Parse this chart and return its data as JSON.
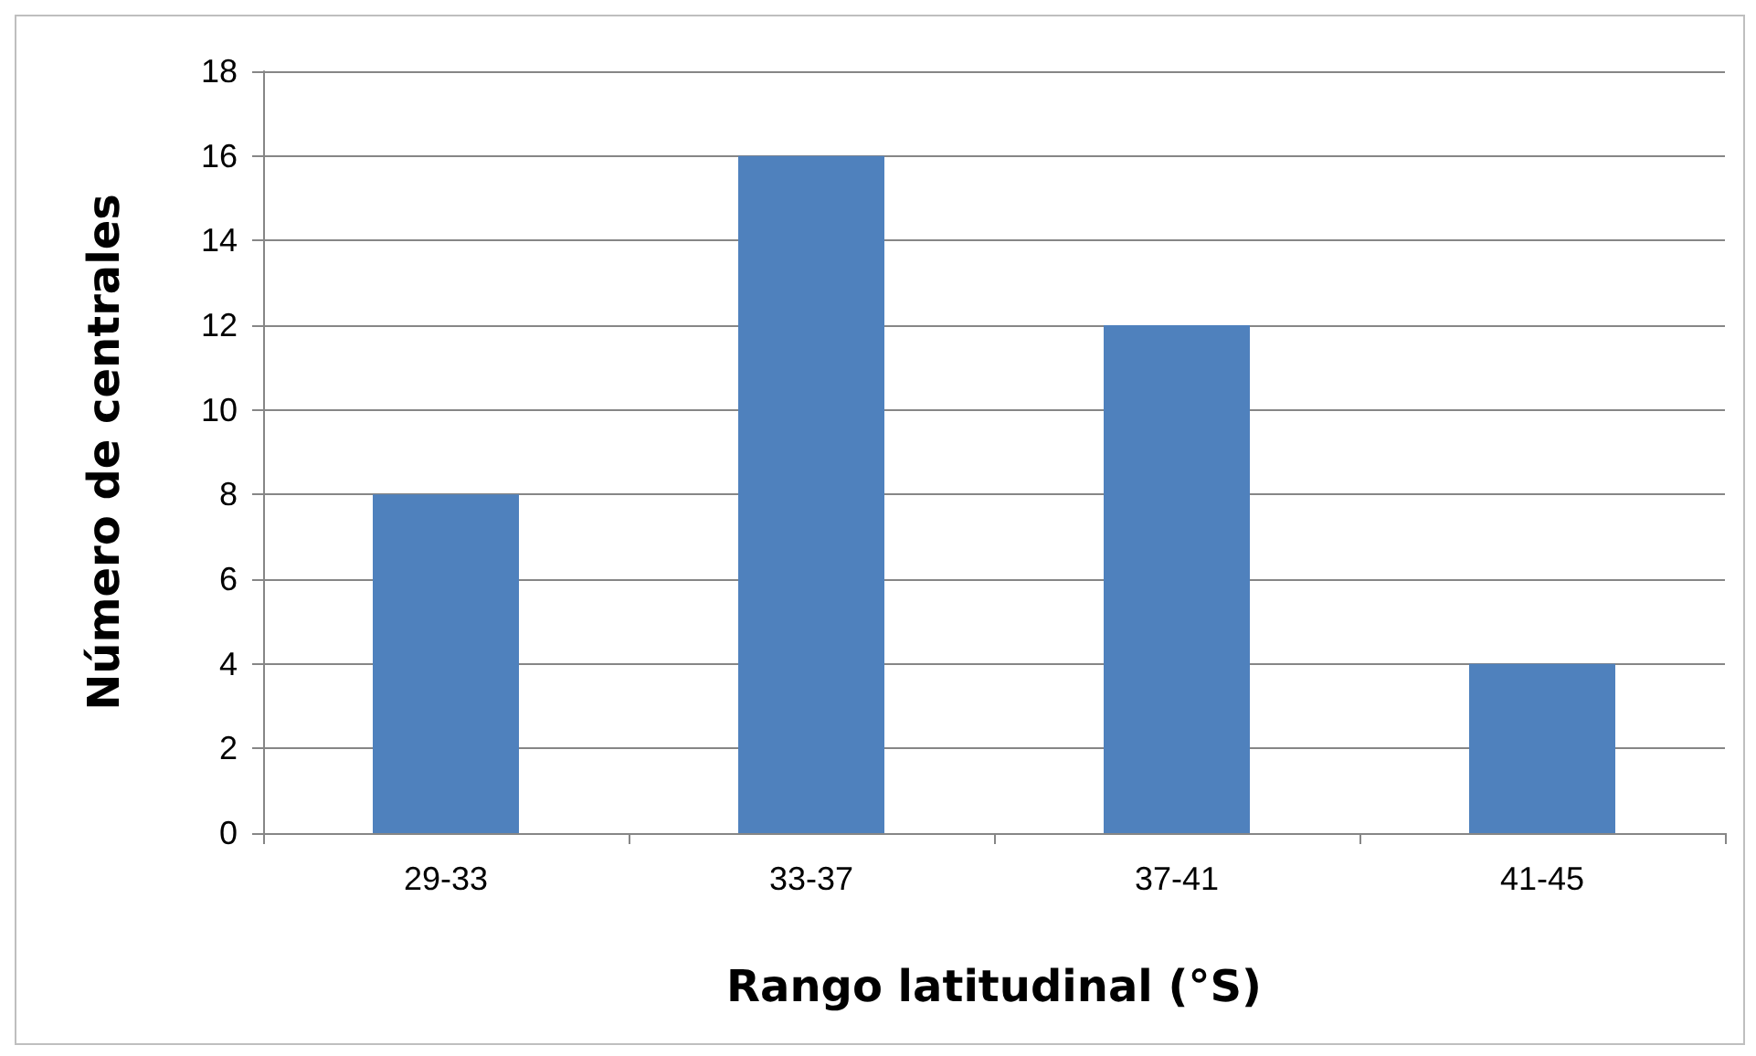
{
  "chart_data": {
    "type": "bar",
    "xlabel": "Rango latitudinal (°S)",
    "ylabel": "Número de centrales",
    "categories": [
      "29-33",
      "33-37",
      "37-41",
      "41-45"
    ],
    "values": [
      8,
      16,
      12,
      4
    ],
    "color": "#4f81bd",
    "ylim": [
      0,
      18
    ],
    "yticks": [
      0,
      2,
      4,
      6,
      8,
      10,
      12,
      14,
      16,
      18
    ],
    "grid": "y"
  }
}
